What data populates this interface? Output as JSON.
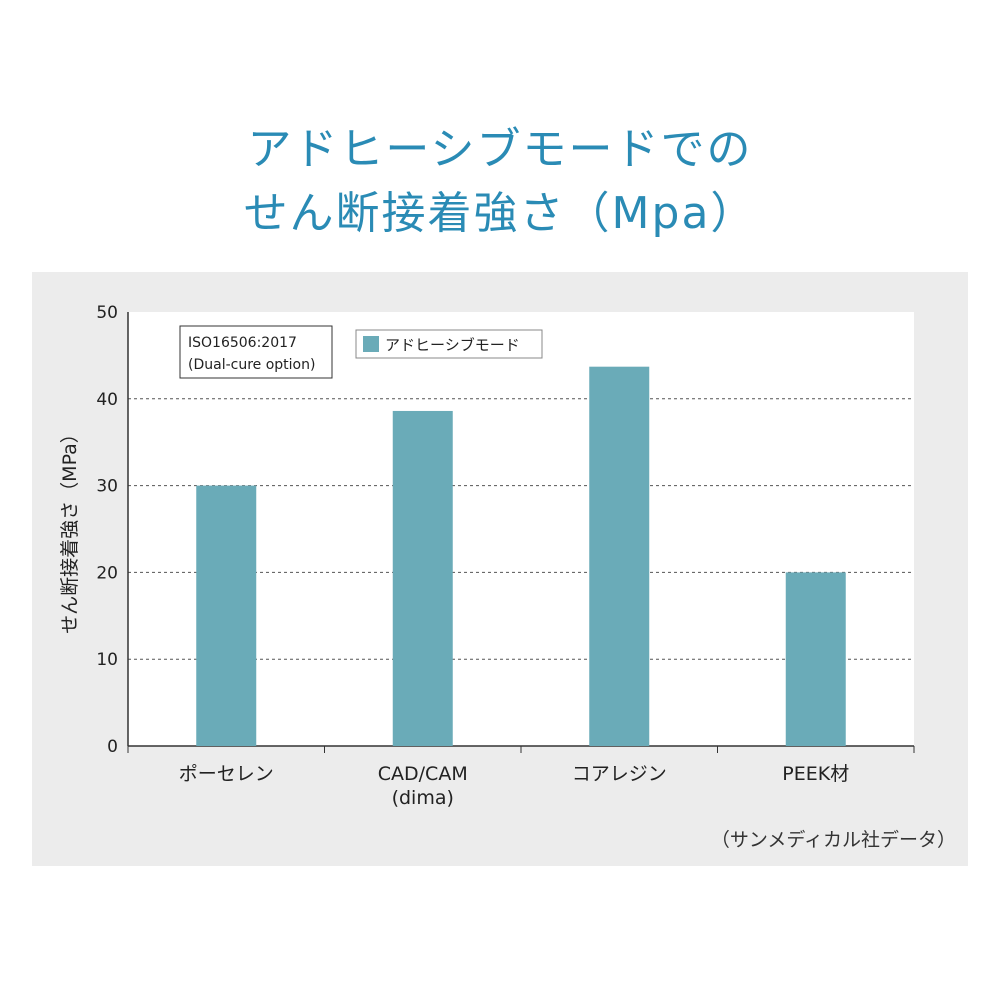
{
  "title": {
    "line1": "アドヒーシブモードでの",
    "line2": "せん断接着強さ（Mpa）"
  },
  "colors": {
    "title": "#2a8bb5",
    "bar": "#6aabb8",
    "panel_background": "#ececec",
    "plot_background": "#ffffff"
  },
  "chart_data": {
    "type": "bar",
    "categories": [
      "ポーセレン",
      "CAD/CAM\n(dima)",
      "コアレジン",
      "PEEK材"
    ],
    "series": [
      {
        "name": "アドヒーシブモード",
        "values": [
          30,
          38.6,
          43.7,
          20
        ]
      }
    ],
    "xlabel": "",
    "ylabel": "せん断接着強さ（MPa）",
    "ylim": [
      0,
      50
    ],
    "yticks": [
      0,
      10,
      20,
      30,
      40,
      50
    ],
    "grid": "horizontal dashed",
    "legend_position": "top",
    "annotation": [
      "ISO16506:2017",
      "(Dual-cure option)"
    ]
  },
  "source_note": "（サンメディカル社データ）"
}
